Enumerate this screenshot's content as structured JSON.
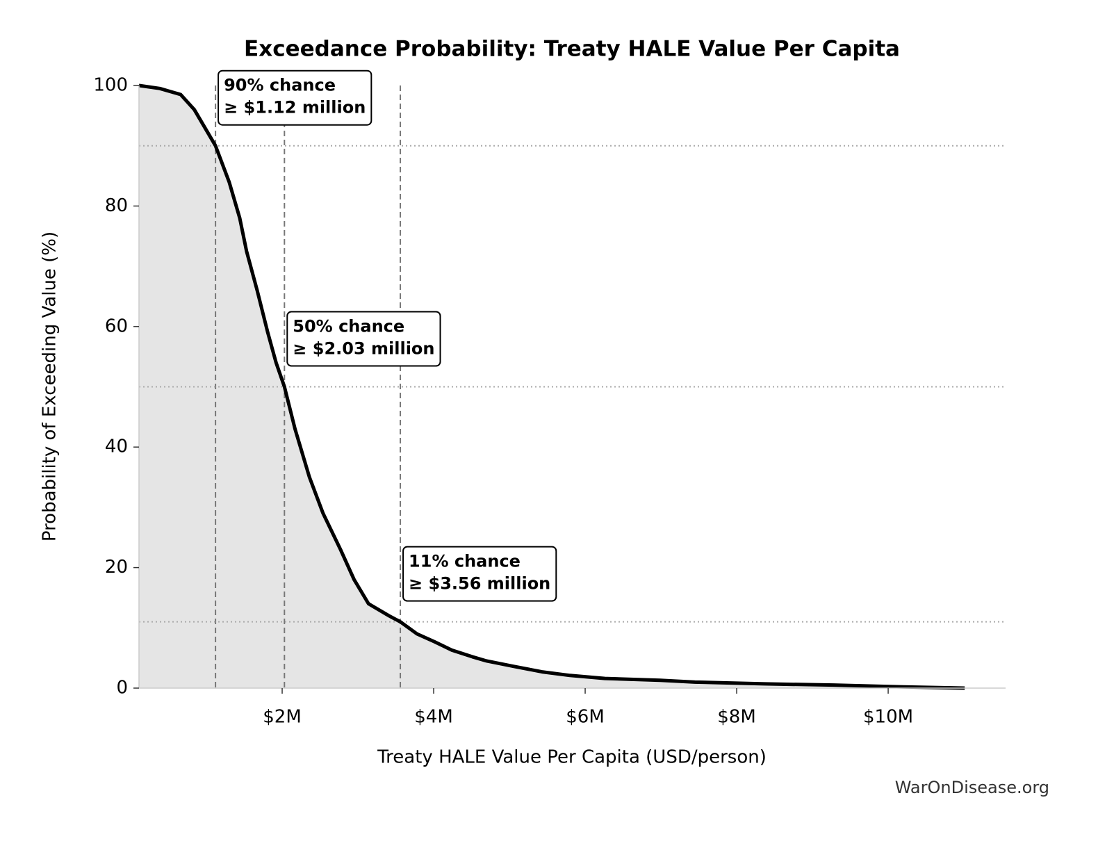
{
  "chart_data": {
    "type": "area",
    "title": "Exceedance Probability: Treaty HALE Value Per Capita",
    "xlabel": "Treaty HALE Value Per Capita (USD/person)",
    "ylabel": "Probability of Exceeding Value (%)",
    "footer": "WarOnDisease.org",
    "line_color": "#000000",
    "fill_color": "#e5e5e5",
    "xlim": [
      110000,
      11550000
    ],
    "ylim": [
      0,
      100
    ],
    "xticks": [
      {
        "value": 2000000,
        "label": "$2M"
      },
      {
        "value": 4000000,
        "label": "$4M"
      },
      {
        "value": 6000000,
        "label": "$6M"
      },
      {
        "value": 8000000,
        "label": "$8M"
      },
      {
        "value": 10000000,
        "label": "$10M"
      }
    ],
    "yticks": [
      0,
      20,
      40,
      60,
      80,
      100
    ],
    "x": [
      110000,
      385000,
      660000,
      840000,
      980000,
      1120000,
      1300000,
      1440000,
      1530000,
      1670000,
      1810000,
      1920000,
      2030000,
      2170000,
      2360000,
      2540000,
      2770000,
      2950000,
      3140000,
      3410000,
      3560000,
      3780000,
      4010000,
      4240000,
      4510000,
      4700000,
      5060000,
      5430000,
      5800000,
      6260000,
      6990000,
      7450000,
      8370000,
      9280000,
      10200000,
      11010000
    ],
    "values": [
      100,
      99.5,
      98.5,
      96,
      93,
      90,
      84,
      78,
      72.5,
      66,
      59,
      54,
      50,
      43,
      35,
      29,
      23,
      18,
      14,
      12,
      11,
      9,
      7.7,
      6.3,
      5.2,
      4.5,
      3.6,
      2.7,
      2.1,
      1.6,
      1.3,
      1.0,
      0.7,
      0.5,
      0.2,
      0
    ],
    "annotations": [
      {
        "x": 1120000,
        "y": 90,
        "lines": [
          "90% chance",
          "≥ $1.12 million"
        ]
      },
      {
        "x": 2030000,
        "y": 50,
        "lines": [
          "50% chance",
          "≥ $2.03 million"
        ]
      },
      {
        "x": 3560000,
        "y": 11,
        "lines": [
          "11% chance",
          "≥ $3.56 million"
        ]
      }
    ]
  }
}
